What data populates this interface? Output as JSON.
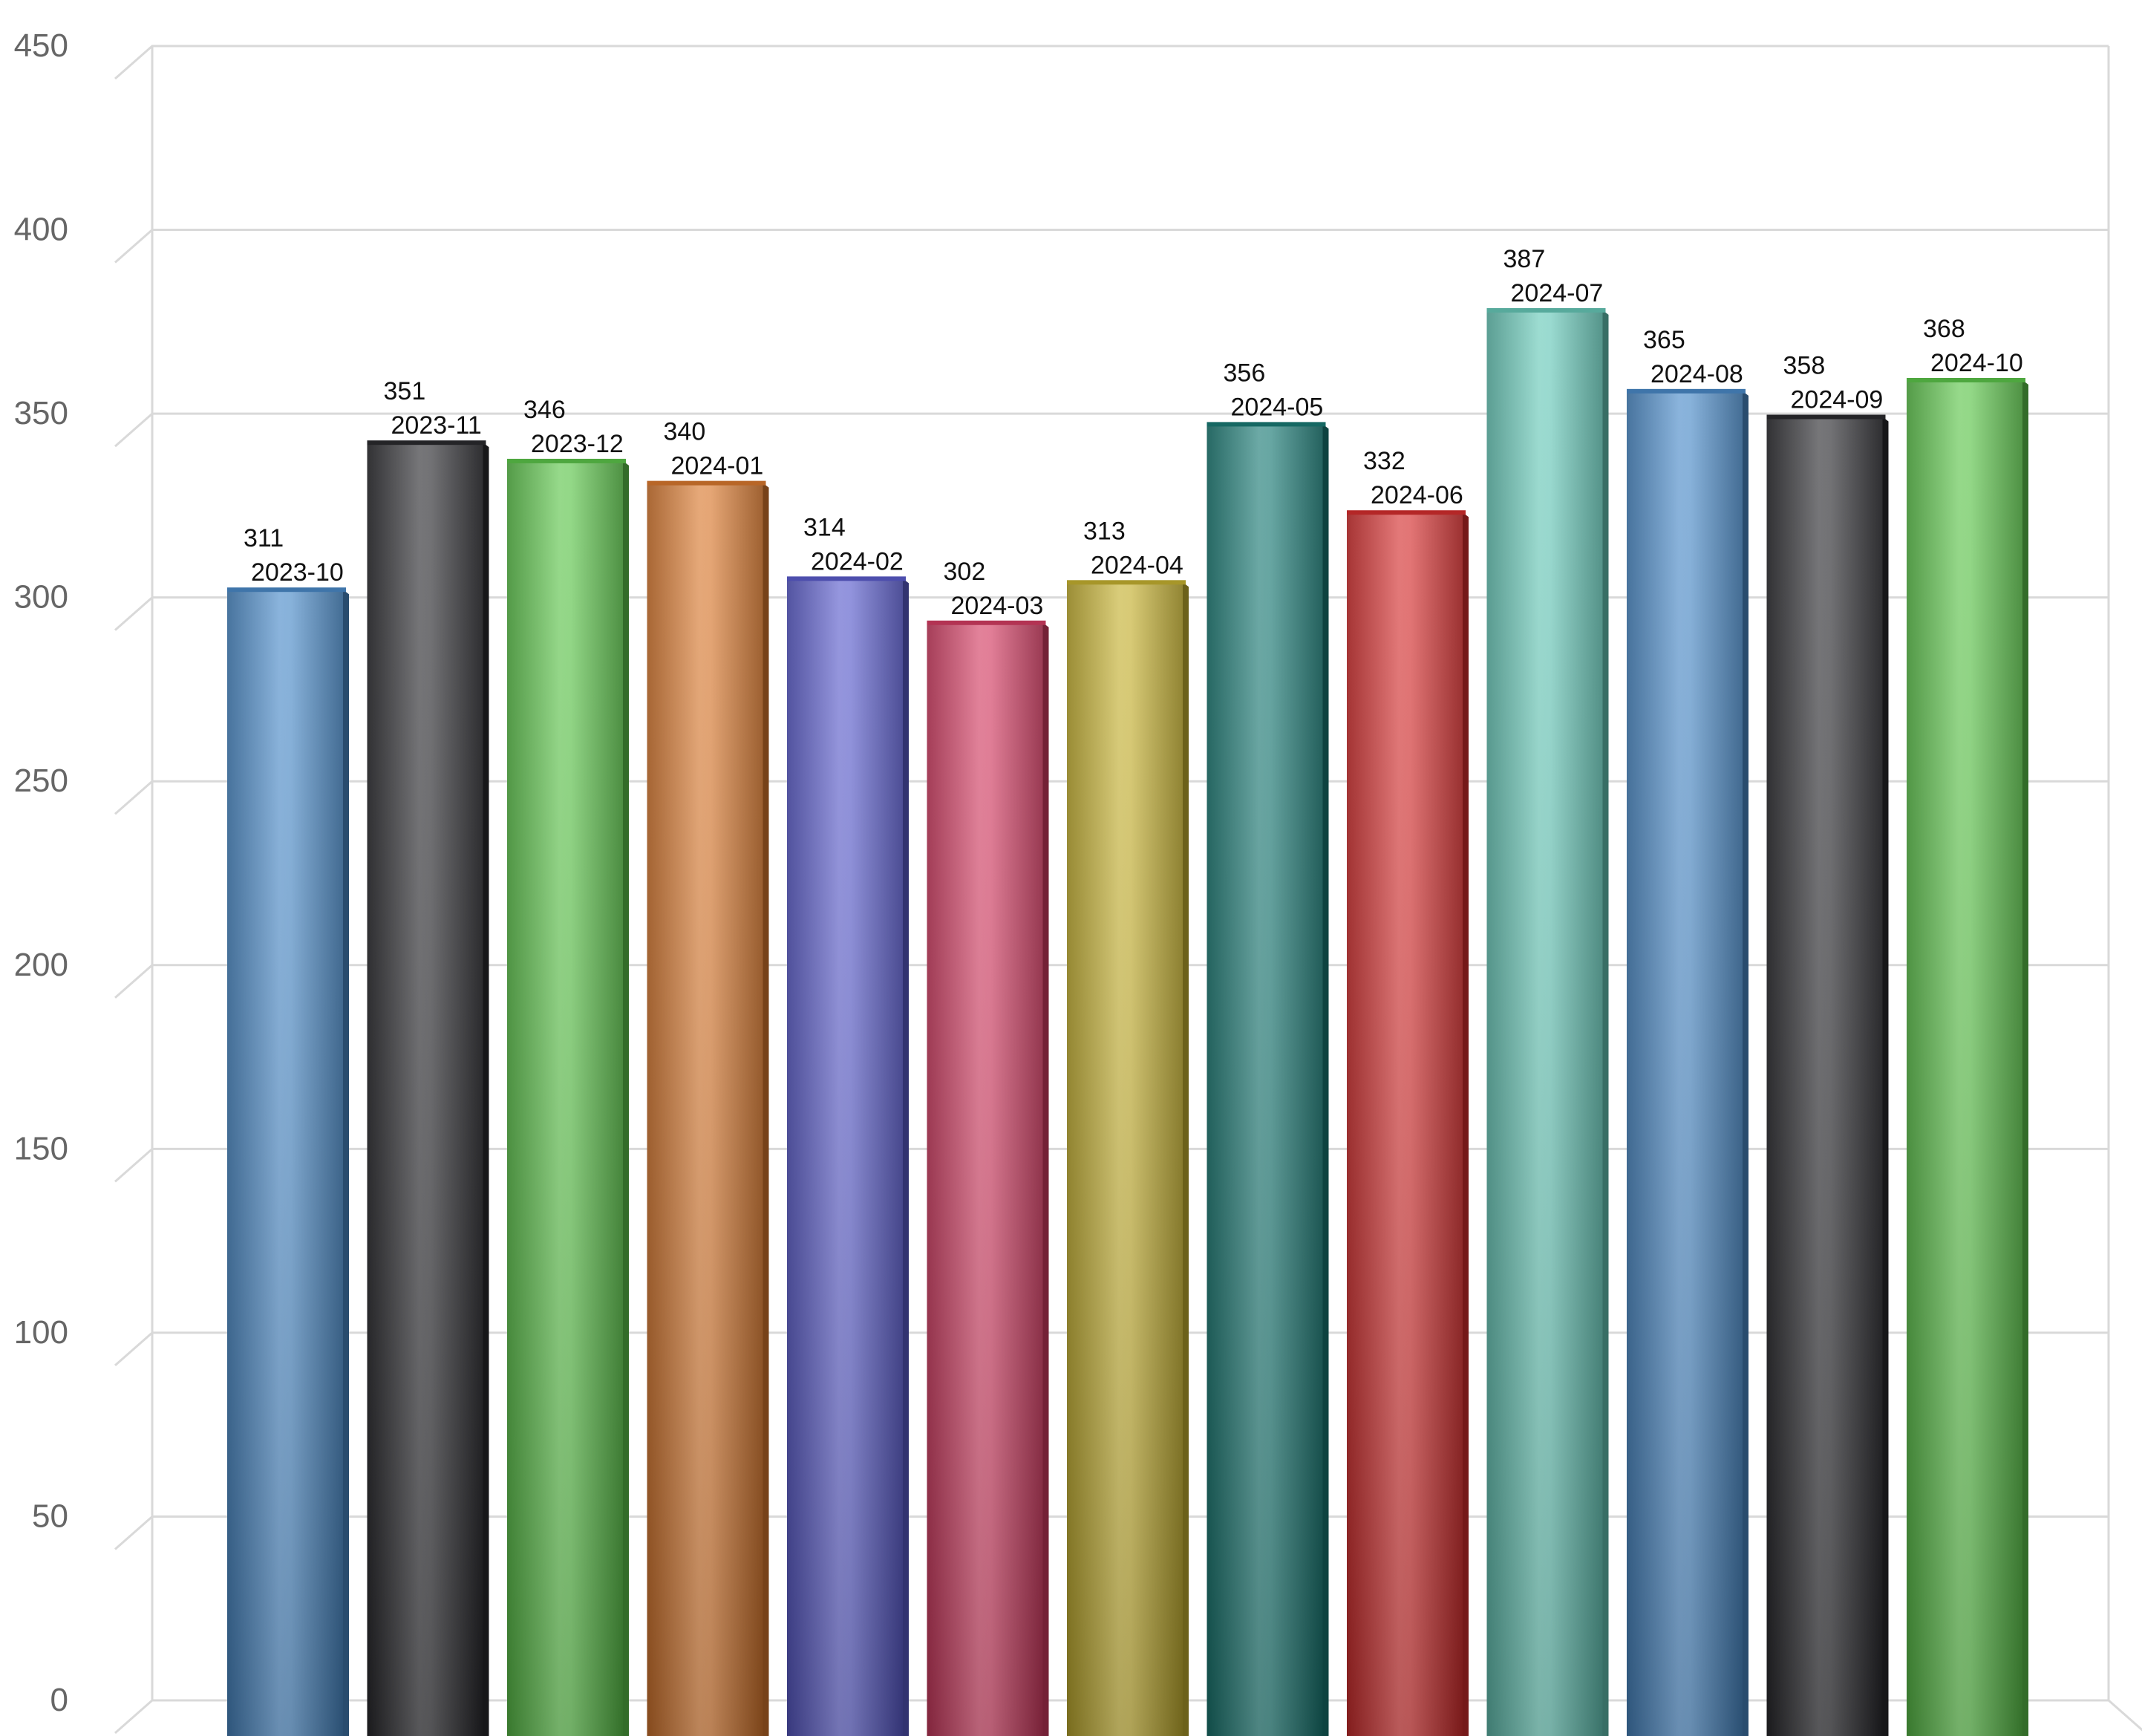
{
  "chart_data": {
    "type": "bar",
    "style": "3d-cylinder-gradient",
    "title": "",
    "xlabel": "",
    "ylabel": "",
    "categories": [
      "2023-10",
      "2023-11",
      "2023-12",
      "2024-01",
      "2024-02",
      "2024-03",
      "2024-04",
      "2024-05",
      "2024-06",
      "2024-07",
      "2024-08",
      "2024-09",
      "2024-10"
    ],
    "values": [
      311,
      351,
      346,
      340,
      314,
      302,
      313,
      356,
      332,
      387,
      365,
      358,
      368
    ],
    "ylim": [
      0,
      450
    ],
    "yticks": [
      0,
      50,
      100,
      150,
      200,
      250,
      300,
      350,
      400,
      450
    ],
    "grid": true,
    "legend": "none",
    "data_labels": true,
    "colors": [
      "#4a8ac8",
      "#2a2a2e",
      "#5cc44a",
      "#d8782e",
      "#5a5ccc",
      "#d23c62",
      "#c4b030",
      "#1a7a74",
      "#d42e2e",
      "#66c8b8",
      "#4a8ac8",
      "#2a2a2e",
      "#5cc44a"
    ]
  }
}
